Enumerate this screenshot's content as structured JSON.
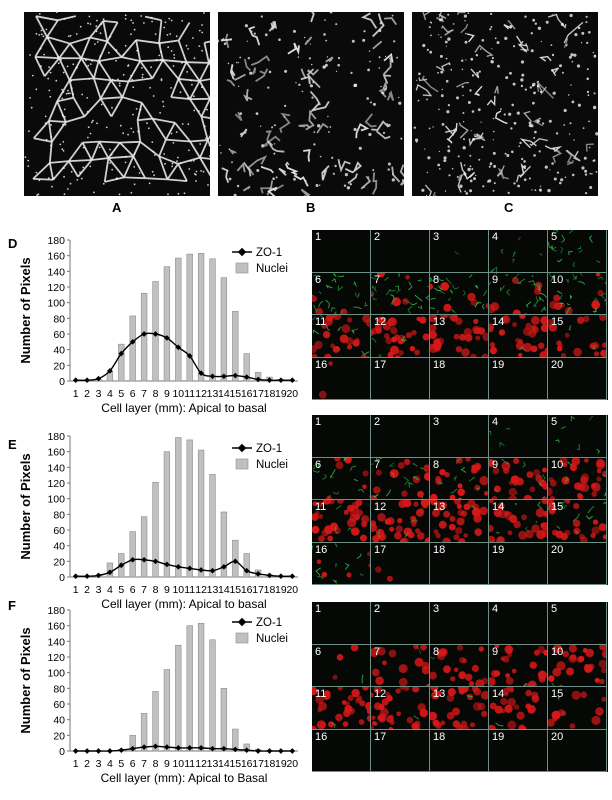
{
  "top_labels": [
    "A",
    "B",
    "C"
  ],
  "panels": [
    {
      "label": "D",
      "chart_data": {
        "type": "bar",
        "categories": [
          "1",
          "2",
          "3",
          "4",
          "5",
          "6",
          "7",
          "8",
          "9",
          "10",
          "11",
          "12",
          "13",
          "14",
          "15",
          "16",
          "17",
          "18",
          "19",
          "20"
        ],
        "series": [
          {
            "name": "ZO-1",
            "kind": "line",
            "values": [
              1,
              1,
              3,
              13,
              35,
              50,
              60,
              60,
              55,
              43,
              32,
              10,
              6,
              6,
              7,
              5,
              2,
              1,
              1,
              1
            ]
          },
          {
            "name": "Nuclei",
            "kind": "bar",
            "values": [
              0,
              0,
              2,
              12,
              47,
              83,
              112,
              127,
              146,
              157,
              162,
              163,
              156,
              132,
              89,
              35,
              11,
              5,
              2,
              0
            ]
          }
        ],
        "ylabel": "Number of Pixels",
        "xlabel": "Cell layer (mm): Apical to basal",
        "ylim": [
          0,
          180
        ],
        "yticks": [
          "0",
          "20",
          "40",
          "60",
          "80",
          "100",
          "120",
          "140",
          "160",
          "180"
        ],
        "legend": "top-right"
      },
      "grid_numbers": [
        "1",
        "2",
        "3",
        "4",
        "5",
        "6",
        "7",
        "8",
        "9",
        "10",
        "11",
        "12",
        "13",
        "14",
        "15",
        "16",
        "17",
        "18",
        "19",
        "20"
      ]
    },
    {
      "label": "E",
      "chart_data": {
        "type": "bar",
        "categories": [
          "1",
          "2",
          "3",
          "4",
          "5",
          "6",
          "7",
          "8",
          "9",
          "10",
          "11",
          "12",
          "13",
          "14",
          "15",
          "16",
          "17",
          "18",
          "19",
          "20"
        ],
        "series": [
          {
            "name": "ZO-1",
            "kind": "line",
            "values": [
              1,
              1,
              2,
              6,
              15,
              22,
              22,
              20,
              16,
              13,
              11,
              9,
              8,
              13,
              20,
              8,
              4,
              2,
              1,
              1
            ]
          },
          {
            "name": "Nuclei",
            "kind": "bar",
            "values": [
              0,
              0,
              2,
              18,
              30,
              58,
              77,
              121,
              160,
              178,
              175,
              162,
              131,
              83,
              47,
              30,
              9,
              3,
              1,
              0
            ]
          }
        ],
        "ylabel": "Number of Pixels",
        "xlabel": "Cell layer (mm): Apical to basal",
        "ylim": [
          0,
          180
        ],
        "yticks": [
          "0",
          "20",
          "40",
          "60",
          "80",
          "100",
          "120",
          "140",
          "160",
          "180"
        ],
        "legend": "top-right"
      },
      "grid_numbers": [
        "1",
        "2",
        "3",
        "4",
        "5",
        "6",
        "7",
        "8",
        "9",
        "10",
        "11",
        "12",
        "13",
        "14",
        "15",
        "16",
        "17",
        "18",
        "19",
        "20"
      ]
    },
    {
      "label": "F",
      "chart_data": {
        "type": "bar",
        "categories": [
          "1",
          "2",
          "3",
          "4",
          "5",
          "6",
          "7",
          "8",
          "9",
          "10",
          "11",
          "12",
          "13",
          "14",
          "15",
          "16",
          "17",
          "18",
          "19",
          "20"
        ],
        "series": [
          {
            "name": "ZO-1",
            "kind": "line",
            "values": [
              0,
              0,
              0,
              0,
              1,
              3,
              5,
              6,
              5,
              4,
              4,
              4,
              3,
              3,
              2,
              1,
              0,
              0,
              0,
              0
            ]
          },
          {
            "name": "Nuclei",
            "kind": "bar",
            "values": [
              0,
              0,
              0,
              0,
              2,
              20,
              48,
              76,
              104,
              135,
              160,
              163,
              142,
              80,
              28,
              9,
              2,
              1,
              0,
              0
            ]
          }
        ],
        "ylabel": "Number of Pixels",
        "xlabel": "Cell layer (mm): Apical to Basal",
        "ylim": [
          0,
          180
        ],
        "yticks": [
          "0",
          "20",
          "40",
          "60",
          "80",
          "100",
          "120",
          "140",
          "160",
          "180"
        ],
        "legend": "top-right"
      },
      "grid_numbers": [
        "1",
        "2",
        "3",
        "4",
        "5",
        "6",
        "7",
        "8",
        "9",
        "10",
        "11",
        "12",
        "13",
        "14",
        "15",
        "16",
        "17",
        "18",
        "19",
        "20"
      ]
    }
  ],
  "colors": {
    "bar_fill": "#c0c0c0",
    "bar_stroke": "#8c8c8c",
    "line": "#000000",
    "nuclei_stain": "#d81818",
    "zo1_stain": "#2fb84a",
    "grid_line": "#6e8f86"
  },
  "grid_intensity": [
    {
      "green": [
        0,
        0,
        0.05,
        0.25,
        0.55,
        0.85,
        0.9,
        0.9,
        0.85,
        0.8,
        0.4,
        0.1,
        0.05,
        0.05,
        0.1,
        0,
        0,
        0,
        0,
        0
      ],
      "red": [
        0,
        0,
        0,
        0,
        0,
        0.1,
        0.15,
        0.2,
        0.2,
        0.25,
        0.7,
        0.9,
        0.9,
        0.85,
        0.5,
        0.05,
        0,
        0,
        0,
        0
      ]
    },
    {
      "green": [
        0,
        0,
        0,
        0.1,
        0.25,
        0.5,
        0.45,
        0.3,
        0.25,
        0.15,
        0.1,
        0.1,
        0.05,
        0.2,
        0.35,
        0.4,
        0,
        0,
        0,
        0
      ],
      "red": [
        0,
        0,
        0,
        0,
        0,
        0.2,
        0.35,
        0.6,
        0.7,
        0.85,
        0.95,
        0.95,
        0.9,
        0.8,
        0.6,
        0.15,
        0.05,
        0,
        0,
        0
      ]
    },
    {
      "green": [
        0,
        0,
        0,
        0,
        0,
        0.05,
        0.05,
        0.05,
        0.05,
        0.05,
        0.05,
        0.05,
        0.05,
        0.05,
        0.05,
        0,
        0,
        0,
        0,
        0
      ],
      "red": [
        0,
        0,
        0,
        0,
        0,
        0.1,
        0.45,
        0.55,
        0.65,
        0.75,
        0.95,
        0.95,
        0.9,
        0.7,
        0.35,
        0,
        0,
        0,
        0,
        0
      ]
    }
  ]
}
